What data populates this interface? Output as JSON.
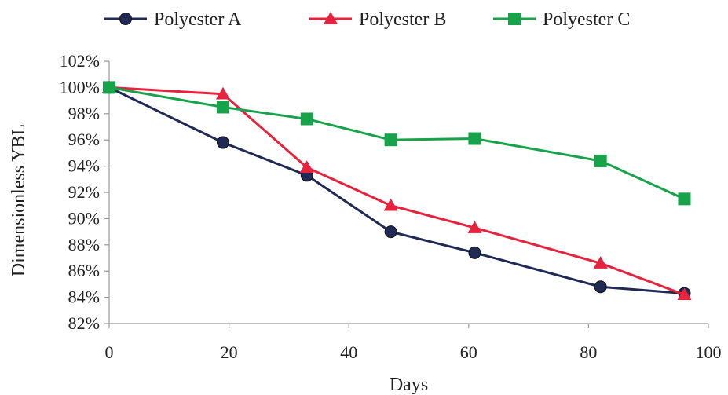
{
  "chart_data": {
    "type": "line",
    "title": "",
    "xlabel": "Days",
    "ylabel": "Dimensionless YBL",
    "xlim": [
      0,
      100
    ],
    "ylim": [
      0.82,
      1.02
    ],
    "x_ticks": [
      0,
      20,
      40,
      60,
      80,
      100
    ],
    "x_tick_labels": [
      "0",
      "20",
      "40",
      "60",
      "80",
      "100"
    ],
    "y_ticks": [
      0.82,
      0.84,
      0.86,
      0.88,
      0.9,
      0.92,
      0.94,
      0.96,
      0.98,
      1.0,
      1.02
    ],
    "y_tick_labels": [
      "82%",
      "84%",
      "86%",
      "88%",
      "90%",
      "92%",
      "94%",
      "96%",
      "98%",
      "100%",
      "102%"
    ],
    "grid": false,
    "legend_position": "top",
    "series": [
      {
        "name": "Polyester A",
        "color": "#1f2a55",
        "marker": "circle",
        "x": [
          0,
          19,
          33,
          47,
          61,
          82,
          96
        ],
        "y": [
          1.0,
          0.958,
          0.933,
          0.89,
          0.874,
          0.848,
          0.843
        ]
      },
      {
        "name": "Polyester B",
        "color": "#e8213d",
        "marker": "triangle",
        "x": [
          0,
          19,
          33,
          47,
          61,
          82,
          96
        ],
        "y": [
          1.0,
          0.995,
          0.939,
          0.91,
          0.893,
          0.866,
          0.842
        ]
      },
      {
        "name": "Polyester C",
        "color": "#16a34a",
        "marker": "square",
        "x": [
          0,
          19,
          33,
          47,
          61,
          82,
          96
        ],
        "y": [
          1.0,
          0.985,
          0.976,
          0.96,
          0.961,
          0.944,
          0.915
        ]
      }
    ]
  }
}
